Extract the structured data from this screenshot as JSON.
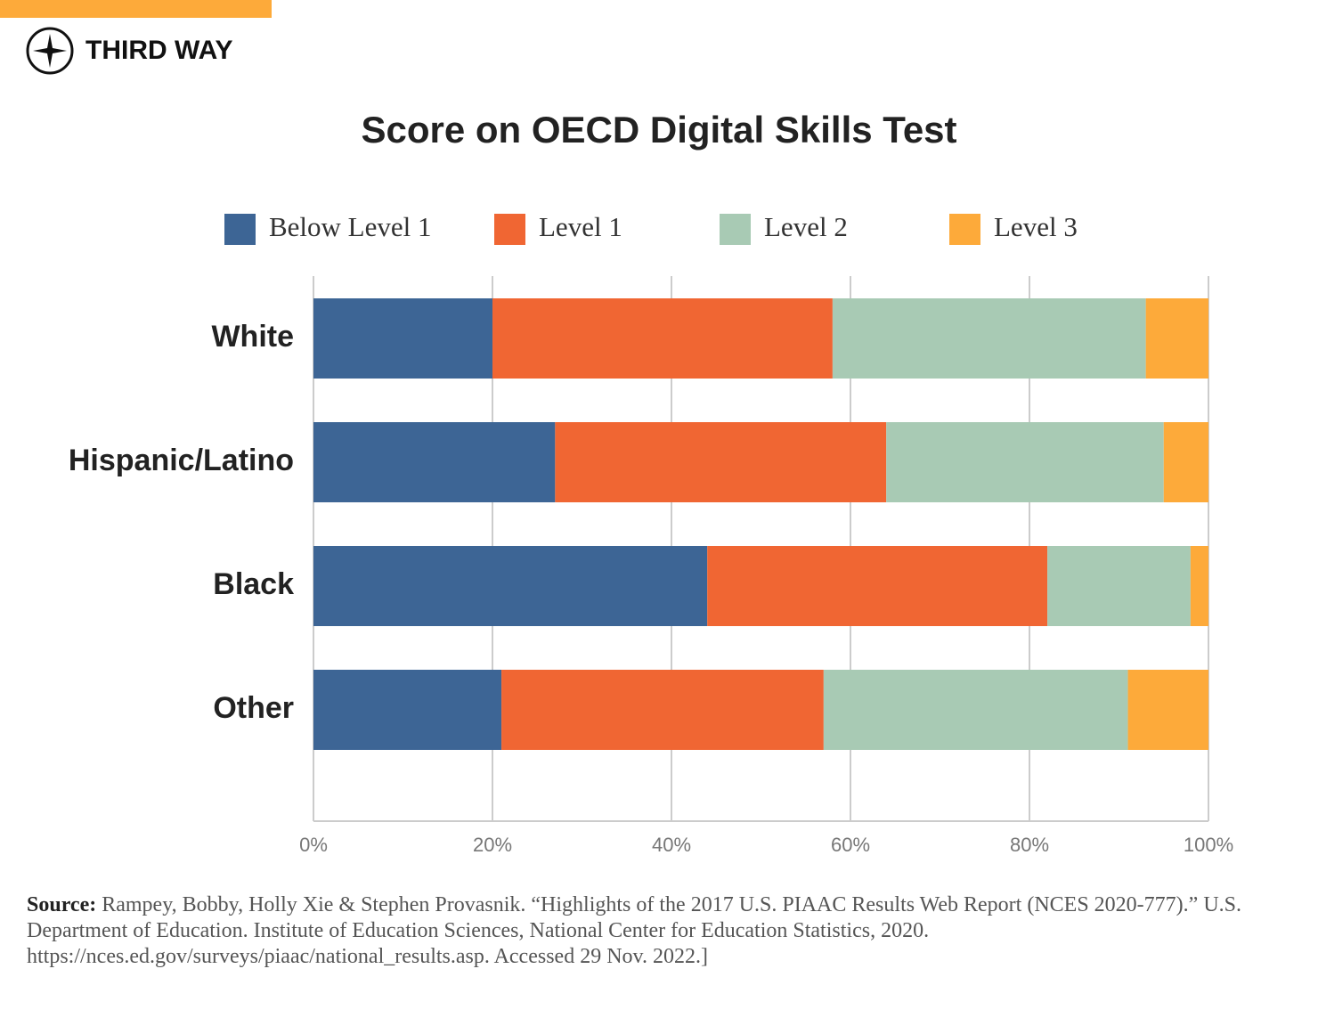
{
  "brand": "THIRD WAY",
  "chart_data": {
    "type": "stacked-bar-horizontal",
    "title": "Score on OECD Digital Skills Test",
    "categories": [
      "White",
      "Hispanic/Latino",
      "Black",
      "Other"
    ],
    "series": [
      {
        "name": "Below Level 1",
        "color": "#3d6595",
        "values": [
          20,
          27,
          44,
          21
        ]
      },
      {
        "name": "Level 1",
        "color": "#f06633",
        "values": [
          38,
          37,
          38,
          36
        ]
      },
      {
        "name": "Level 2",
        "color": "#a8cab4",
        "values": [
          35,
          31,
          16,
          34
        ]
      },
      {
        "name": "Level 3",
        "color": "#fdaa3a",
        "values": [
          7,
          5,
          2,
          9
        ]
      }
    ],
    "xlim": [
      0,
      100
    ],
    "xticks": [
      {
        "value": 0,
        "label": "0%"
      },
      {
        "value": 20,
        "label": "20%"
      },
      {
        "value": 40,
        "label": "40%"
      },
      {
        "value": 60,
        "label": "60%"
      },
      {
        "value": 80,
        "label": "80%"
      },
      {
        "value": 100,
        "label": "100%"
      }
    ],
    "grid": true,
    "legend": "top"
  },
  "source": {
    "label": "Source:",
    "text": "Rampey, Bobby, Holly Xie & Stephen Provasnik. “Highlights of the 2017 U.S. PIAAC Results Web Report (NCES 2020-777).” U.S. Department of Education. Institute of Education Sciences, National Center for Education Statistics, 2020. https://nces.ed.gov/surveys/piaac/national_results.asp. Accessed 29 Nov. 2022.]"
  }
}
